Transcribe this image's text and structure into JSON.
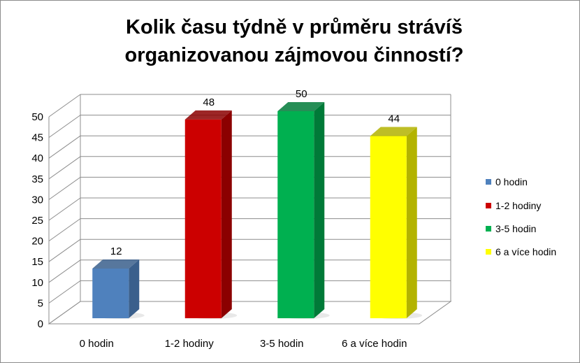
{
  "chart_data": {
    "type": "bar",
    "title_lines": [
      "Kolik času týdně v průměru strávíš",
      "organizovanou zájmovou činností?"
    ],
    "categories": [
      "0 hodin",
      "1-2 hodiny",
      "3-5 hodin",
      "6 a více hodin"
    ],
    "values": [
      12,
      48,
      50,
      44
    ],
    "colors": [
      "#4f81bd",
      "#cc0000",
      "#00b050",
      "#ffff00"
    ],
    "side_colors": [
      "#3a5f8c",
      "#8b0000",
      "#007a38",
      "#b3b300"
    ],
    "ylim": [
      0,
      50
    ],
    "yticks": [
      "0",
      "5",
      "10",
      "15",
      "20",
      "25",
      "30",
      "35",
      "40",
      "45",
      "50"
    ],
    "grid": true,
    "legend_position": "right",
    "legend": [
      "0 hodin",
      "1-2 hodiny",
      "3-5 hodin",
      "6 a více hodin"
    ],
    "data_labels": [
      "12",
      "48",
      "50",
      "44"
    ]
  }
}
